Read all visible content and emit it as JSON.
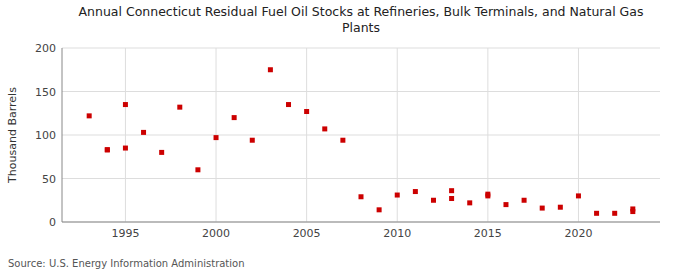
{
  "chart_data": {
    "type": "scatter",
    "title": "Annual Connecticut Residual Fuel Oil Stocks at Refineries, Bulk Terminals, and Natural Gas\nPlants",
    "ylabel": "Thousand Barrels",
    "source": "Source: U.S. Energy Information Administration",
    "x": [
      1993,
      1994,
      1994,
      1995,
      1995,
      1996,
      1997,
      1998,
      1999,
      2000,
      2001,
      2002,
      2003,
      2004,
      2005,
      2006,
      2007,
      2008,
      2009,
      2010,
      2011,
      2012,
      2013,
      2013,
      2014,
      2015,
      2015,
      2016,
      2017,
      2018,
      2019,
      2020,
      2021,
      2022,
      2023,
      2023
    ],
    "values": [
      122,
      83,
      83,
      135,
      85,
      103,
      80,
      132,
      60,
      97,
      120,
      94,
      175,
      135,
      127,
      107,
      94,
      29,
      14,
      31,
      35,
      25,
      27,
      36,
      22,
      30,
      32,
      20,
      25,
      16,
      17,
      30,
      10,
      10,
      12,
      15
    ],
    "color": "#cc0000",
    "marker": "square",
    "xlim": [
      1991.5,
      2024.5
    ],
    "ylim": [
      0,
      200
    ],
    "yticks": [
      0,
      50,
      100,
      150,
      200
    ],
    "xticks": [
      1995,
      2000,
      2005,
      2010,
      2015,
      2020
    ],
    "grid": true
  }
}
